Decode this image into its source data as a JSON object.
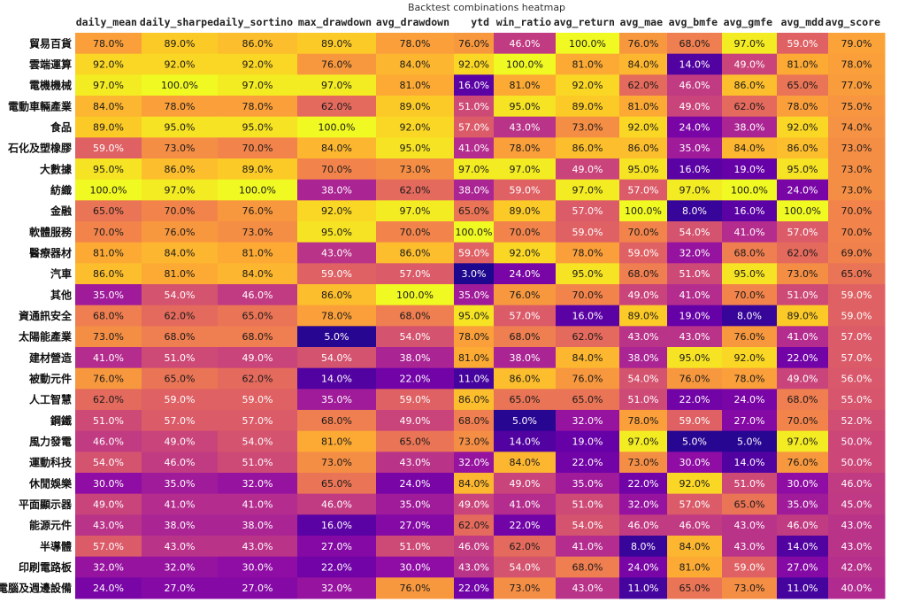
{
  "chart_data": {
    "type": "heatmap",
    "title": "Backtest combinations heatmap",
    "columns": [
      "daily_mean",
      "daily_sharpe",
      "daily_sortino",
      "max_drawdown",
      "avg_drawdown",
      "ytd",
      "win_ratio",
      "avg_return",
      "avg_mae",
      "avg_bmfe",
      "avg_gmfe",
      "avg_mdd",
      "avg_score"
    ],
    "rows": [
      "貿易百貨",
      "雲端運算",
      "電機機械",
      "電動車輛產業",
      "食品",
      "石化及塑橡膠",
      "大數據",
      "紡織",
      "金融",
      "軟體服務",
      "醫療器材",
      "汽車",
      "其他",
      "資通訊安全",
      "太陽能產業",
      "建材營造",
      "被動元件",
      "人工智慧",
      "鋼鐵",
      "風力發電",
      "運動科技",
      "休閒娛樂",
      "平面顯示器",
      "能源元件",
      "半導體",
      "印刷電路板",
      "電腦及週邊設備"
    ],
    "values": [
      [
        78,
        89,
        86,
        89,
        78,
        76,
        46,
        100,
        76,
        68,
        97,
        59,
        79
      ],
      [
        92,
        92,
        92,
        76,
        84,
        92,
        100,
        81,
        84,
        14,
        49,
        81,
        78
      ],
      [
        97,
        100,
        97,
        97,
        81,
        16,
        81,
        92,
        62,
        46,
        86,
        65,
        77
      ],
      [
        84,
        78,
        78,
        62,
        89,
        51,
        95,
        89,
        81,
        49,
        62,
        78,
        75
      ],
      [
        89,
        95,
        95,
        100,
        92,
        57,
        43,
        73,
        92,
        24,
        38,
        92,
        74
      ],
      [
        59,
        73,
        70,
        84,
        95,
        41,
        78,
        86,
        86,
        35,
        84,
        86,
        73
      ],
      [
        95,
        86,
        89,
        70,
        73,
        97,
        97,
        49,
        95,
        16,
        19,
        95,
        73
      ],
      [
        100,
        97,
        100,
        38,
        62,
        38,
        59,
        97,
        57,
        97,
        100,
        24,
        73
      ],
      [
        65,
        70,
        76,
        92,
        97,
        65,
        89,
        57,
        100,
        8,
        16,
        100,
        70
      ],
      [
        70,
        76,
        73,
        95,
        70,
        100,
        70,
        59,
        70,
        54,
        41,
        57,
        70
      ],
      [
        81,
        84,
        81,
        43,
        86,
        59,
        92,
        78,
        59,
        32,
        68,
        62,
        69
      ],
      [
        86,
        81,
        84,
        59,
        57,
        3,
        24,
        95,
        68,
        51,
        95,
        73,
        65
      ],
      [
        35,
        54,
        46,
        86,
        100,
        35,
        76,
        70,
        49,
        41,
        70,
        51,
        59
      ],
      [
        68,
        62,
        65,
        78,
        68,
        95,
        57,
        16,
        89,
        19,
        8,
        89,
        59
      ],
      [
        73,
        68,
        68,
        5,
        54,
        78,
        68,
        62,
        43,
        43,
        76,
        41,
        57
      ],
      [
        41,
        51,
        49,
        54,
        38,
        81,
        38,
        84,
        38,
        95,
        92,
        22,
        57
      ],
      [
        76,
        65,
        62,
        14,
        22,
        11,
        86,
        76,
        54,
        76,
        78,
        49,
        56
      ],
      [
        62,
        59,
        59,
        35,
        59,
        86,
        65,
        65,
        51,
        22,
        24,
        68,
        55
      ],
      [
        51,
        57,
        57,
        68,
        49,
        68,
        5,
        32,
        78,
        59,
        27,
        70,
        52
      ],
      [
        46,
        49,
        54,
        81,
        65,
        73,
        14,
        19,
        97,
        5,
        5,
        97,
        50
      ],
      [
        54,
        46,
        51,
        73,
        43,
        32,
        84,
        22,
        73,
        30,
        14,
        76,
        50
      ],
      [
        30,
        35,
        32,
        65,
        24,
        84,
        49,
        35,
        22,
        92,
        51,
        30,
        46
      ],
      [
        49,
        41,
        41,
        46,
        35,
        49,
        41,
        51,
        32,
        57,
        65,
        35,
        45
      ],
      [
        43,
        38,
        38,
        16,
        27,
        62,
        22,
        54,
        46,
        46,
        43,
        46,
        43
      ],
      [
        57,
        43,
        43,
        27,
        51,
        46,
        62,
        41,
        8,
        84,
        43,
        14,
        43
      ],
      [
        32,
        32,
        30,
        22,
        30,
        43,
        54,
        68,
        24,
        81,
        59,
        27,
        42
      ],
      [
        24,
        27,
        27,
        32,
        76,
        22,
        73,
        43,
        11,
        65,
        73,
        11,
        40
      ]
    ],
    "value_format": "percent_one_decimal",
    "colormap": "plasma",
    "value_range": [
      0,
      100
    ],
    "colorbar": false
  }
}
